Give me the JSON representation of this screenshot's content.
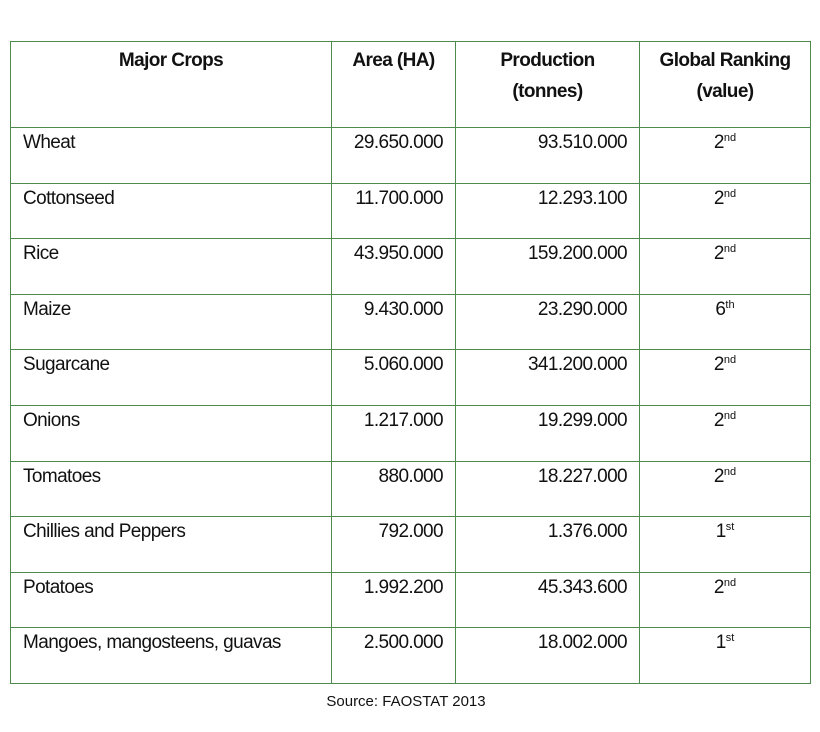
{
  "table": {
    "header": [
      [
        "Major Crops"
      ],
      [
        "Area (HA)"
      ],
      [
        "Production",
        "(tonnes)"
      ],
      [
        "Global Ranking",
        "(value)"
      ]
    ],
    "rows": [
      [
        "Wheat",
        "29.650.000",
        "93.510.000",
        [
          "2",
          "nd"
        ]
      ],
      [
        "Cottonseed",
        "11.700.000",
        "12.293.100",
        [
          "2",
          "nd"
        ]
      ],
      [
        "Rice",
        "43.950.000",
        "159.200.000",
        [
          "2",
          "nd"
        ]
      ],
      [
        "Maize",
        "9.430.000",
        "23.290.000",
        [
          "6",
          "th"
        ]
      ],
      [
        "Sugarcane",
        "5.060.000",
        "341.200.000",
        [
          "2",
          "nd"
        ]
      ],
      [
        "Onions",
        "1.217.000",
        "19.299.000",
        [
          "2",
          "nd"
        ]
      ],
      [
        "Tomatoes",
        "880.000",
        "18.227.000",
        [
          "2",
          "nd"
        ]
      ],
      [
        "Chillies and Peppers",
        "792.000",
        "1.376.000",
        [
          "1",
          "st"
        ]
      ],
      [
        "Potatoes",
        "1.992.200",
        "45.343.600",
        [
          "2",
          "nd"
        ]
      ],
      [
        "Mangoes, mangosteens, guavas",
        "2.500.000",
        "18.002.000",
        [
          "1",
          "st"
        ]
      ]
    ]
  },
  "source": "Source: FAOSTAT 2013"
}
